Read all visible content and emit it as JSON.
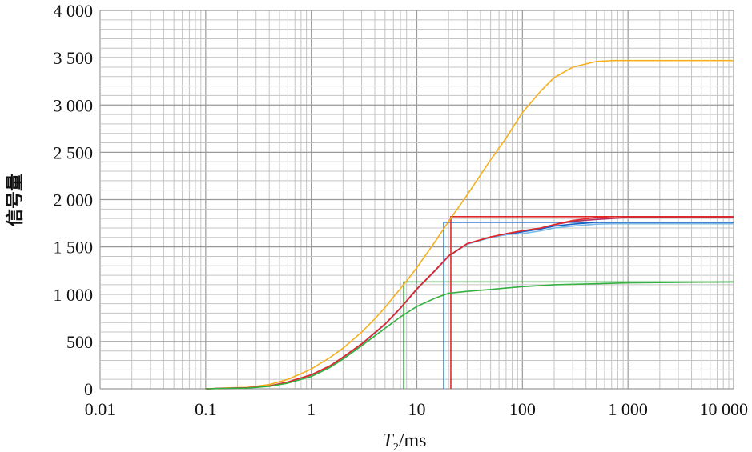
{
  "chart_data": {
    "type": "line",
    "title": "",
    "xlabel": {
      "italic": "T",
      "sub": "2",
      "rest": "/ms"
    },
    "ylabel": "信号量",
    "xscale": "log",
    "xlim": [
      0.01,
      10000
    ],
    "ylim": [
      0,
      4000
    ],
    "grid": true,
    "legend": "none",
    "x_ticks": [
      {
        "value": 0.01,
        "label": "0.01"
      },
      {
        "value": 0.1,
        "label": "0.1"
      },
      {
        "value": 1,
        "label": "1"
      },
      {
        "value": 10,
        "label": "10"
      },
      {
        "value": 100,
        "label": "100"
      },
      {
        "value": 1000,
        "label": "1 000"
      },
      {
        "value": 10000,
        "label": "10 000"
      }
    ],
    "y_ticks": [
      {
        "value": 0,
        "label": "0"
      },
      {
        "value": 500,
        "label": "500"
      },
      {
        "value": 1000,
        "label": "1 000"
      },
      {
        "value": 1500,
        "label": "1 500"
      },
      {
        "value": 2000,
        "label": "2 000"
      },
      {
        "value": 2500,
        "label": "2 500"
      },
      {
        "value": 3000,
        "label": "3 000"
      },
      {
        "value": 3500,
        "label": "3 500"
      },
      {
        "value": 4000,
        "label": "4 000"
      }
    ],
    "series": [
      {
        "color": "#f5b01f",
        "points": [
          [
            0.1,
            0
          ],
          [
            0.15,
            8
          ],
          [
            0.25,
            15
          ],
          [
            0.4,
            45
          ],
          [
            0.6,
            100
          ],
          [
            0.8,
            160
          ],
          [
            1,
            210
          ],
          [
            1.5,
            330
          ],
          [
            2,
            430
          ],
          [
            3,
            600
          ],
          [
            4,
            740
          ],
          [
            5,
            860
          ],
          [
            6,
            970
          ],
          [
            7,
            1060
          ],
          [
            8,
            1140
          ],
          [
            10,
            1280
          ],
          [
            15,
            1560
          ],
          [
            20,
            1770
          ],
          [
            30,
            2050
          ],
          [
            50,
            2420
          ],
          [
            70,
            2650
          ],
          [
            100,
            2920
          ],
          [
            150,
            3150
          ],
          [
            200,
            3290
          ],
          [
            300,
            3400
          ],
          [
            500,
            3460
          ],
          [
            700,
            3470
          ],
          [
            1000,
            3470
          ],
          [
            10000,
            3470
          ]
        ]
      },
      {
        "color": "#1a64c8",
        "points": [
          [
            0.1,
            0
          ],
          [
            0.15,
            5
          ],
          [
            0.25,
            10
          ],
          [
            0.4,
            30
          ],
          [
            0.6,
            70
          ],
          [
            1,
            145
          ],
          [
            1.5,
            240
          ],
          [
            2,
            330
          ],
          [
            3,
            470
          ],
          [
            5,
            680
          ],
          [
            7,
            850
          ],
          [
            10,
            1050
          ],
          [
            15,
            1250
          ],
          [
            20,
            1400
          ],
          [
            30,
            1530
          ],
          [
            50,
            1600
          ],
          [
            70,
            1630
          ],
          [
            100,
            1660
          ],
          [
            150,
            1690
          ],
          [
            200,
            1720
          ],
          [
            300,
            1740
          ],
          [
            500,
            1760
          ],
          [
            700,
            1760
          ],
          [
            1000,
            1760
          ],
          [
            10000,
            1760
          ]
        ]
      },
      {
        "color": "#7ab8e8",
        "points": [
          [
            0.1,
            0
          ],
          [
            0.15,
            5
          ],
          [
            0.25,
            10
          ],
          [
            0.4,
            30
          ],
          [
            0.6,
            70
          ],
          [
            1,
            145
          ],
          [
            1.5,
            240
          ],
          [
            2,
            330
          ],
          [
            3,
            470
          ],
          [
            5,
            680
          ],
          [
            7,
            850
          ],
          [
            10,
            1050
          ],
          [
            15,
            1250
          ],
          [
            20,
            1400
          ],
          [
            30,
            1530
          ],
          [
            50,
            1600
          ],
          [
            70,
            1630
          ],
          [
            100,
            1640
          ],
          [
            150,
            1670
          ],
          [
            200,
            1700
          ],
          [
            300,
            1720
          ],
          [
            500,
            1740
          ],
          [
            700,
            1745
          ],
          [
            1000,
            1745
          ],
          [
            10000,
            1745
          ]
        ]
      },
      {
        "color": "#b03060",
        "points": [
          [
            0.1,
            0
          ],
          [
            0.15,
            5
          ],
          [
            0.25,
            10
          ],
          [
            0.4,
            30
          ],
          [
            0.6,
            72
          ],
          [
            1,
            148
          ],
          [
            1.5,
            242
          ],
          [
            2,
            335
          ],
          [
            3,
            475
          ],
          [
            5,
            685
          ],
          [
            7,
            855
          ],
          [
            10,
            1055
          ],
          [
            15,
            1255
          ],
          [
            20,
            1405
          ],
          [
            30,
            1535
          ],
          [
            50,
            1605
          ],
          [
            70,
            1640
          ],
          [
            100,
            1670
          ],
          [
            150,
            1700
          ],
          [
            200,
            1735
          ],
          [
            300,
            1770
          ],
          [
            500,
            1790
          ],
          [
            700,
            1800
          ],
          [
            1000,
            1810
          ],
          [
            10000,
            1810
          ]
        ]
      },
      {
        "color": "#e02828",
        "points": [
          [
            0.1,
            0
          ],
          [
            0.15,
            5
          ],
          [
            0.25,
            10
          ],
          [
            0.4,
            30
          ],
          [
            0.6,
            72
          ],
          [
            1,
            148
          ],
          [
            1.5,
            242
          ],
          [
            2,
            335
          ],
          [
            3,
            475
          ],
          [
            5,
            685
          ],
          [
            7,
            855
          ],
          [
            10,
            1055
          ],
          [
            15,
            1255
          ],
          [
            20,
            1405
          ],
          [
            30,
            1535
          ],
          [
            50,
            1605
          ],
          [
            70,
            1640
          ],
          [
            100,
            1670
          ],
          [
            150,
            1700
          ],
          [
            200,
            1735
          ],
          [
            300,
            1780
          ],
          [
            500,
            1810
          ],
          [
            700,
            1820
          ],
          [
            1000,
            1820
          ],
          [
            10000,
            1820
          ]
        ]
      },
      {
        "color": "#36b040",
        "points": [
          [
            0.1,
            0
          ],
          [
            0.15,
            4
          ],
          [
            0.25,
            8
          ],
          [
            0.4,
            25
          ],
          [
            0.6,
            60
          ],
          [
            1,
            130
          ],
          [
            1.5,
            225
          ],
          [
            2,
            315
          ],
          [
            3,
            455
          ],
          [
            5,
            640
          ],
          [
            7,
            760
          ],
          [
            10,
            870
          ],
          [
            15,
            960
          ],
          [
            20,
            1010
          ],
          [
            30,
            1030
          ],
          [
            50,
            1050
          ],
          [
            100,
            1080
          ],
          [
            200,
            1100
          ],
          [
            500,
            1110
          ],
          [
            1000,
            1120
          ],
          [
            10000,
            1130
          ]
        ]
      }
    ],
    "reference_lines": [
      {
        "color": "#36b040",
        "x": 7.5,
        "y": 1130
      },
      {
        "color": "#1a64c8",
        "x": 18,
        "y": 1760
      },
      {
        "color": "#e02828",
        "x": 21,
        "y": 1820
      }
    ]
  }
}
